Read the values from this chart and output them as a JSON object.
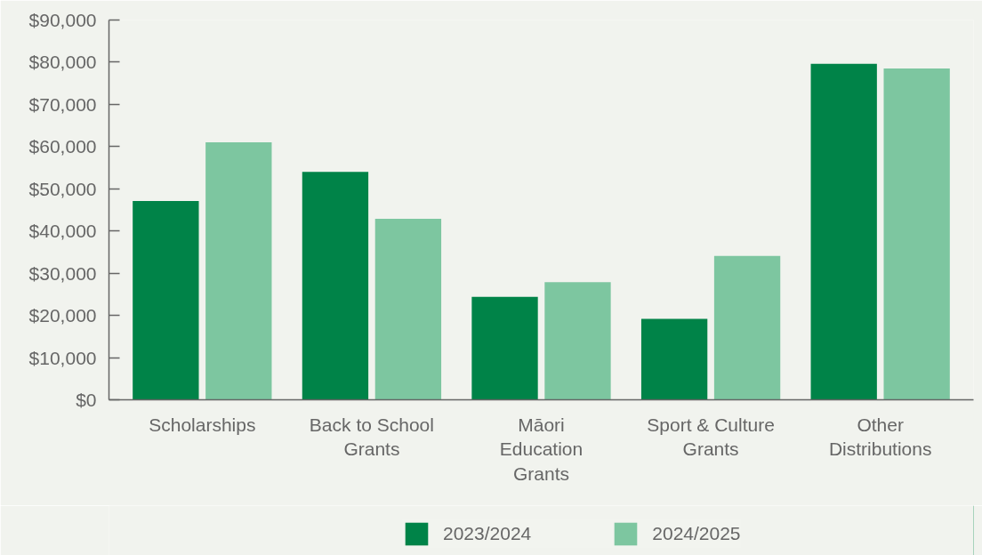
{
  "chart_data": {
    "type": "bar",
    "categories": [
      "Scholarships",
      "Back to School\nGrants",
      "Māori\nEducation\nGrants",
      "Sport & Culture\nGrants",
      "Other\nDistributions"
    ],
    "series": [
      {
        "name": "2023/2024",
        "color": "#008348",
        "values": [
          47100,
          54000,
          24400,
          19200,
          79600
        ]
      },
      {
        "name": "2024/2025",
        "color": "#7dc6a0",
        "values": [
          61000,
          42900,
          27900,
          34100,
          78500
        ]
      }
    ],
    "ylim": [
      0,
      90000
    ],
    "yticks": [
      {
        "value": 0,
        "label": "$0"
      },
      {
        "value": 10000,
        "label": "$10,000"
      },
      {
        "value": 20000,
        "label": "$20,000"
      },
      {
        "value": 30000,
        "label": "$30,000"
      },
      {
        "value": 40000,
        "label": "$40,000"
      },
      {
        "value": 50000,
        "label": "$50,000"
      },
      {
        "value": 60000,
        "label": "$60,000"
      },
      {
        "value": 70000,
        "label": "$70,000"
      },
      {
        "value": 80000,
        "label": "$80,000"
      },
      {
        "value": 90000,
        "label": "$90,000"
      }
    ],
    "grid": false,
    "legend": "bottom"
  }
}
